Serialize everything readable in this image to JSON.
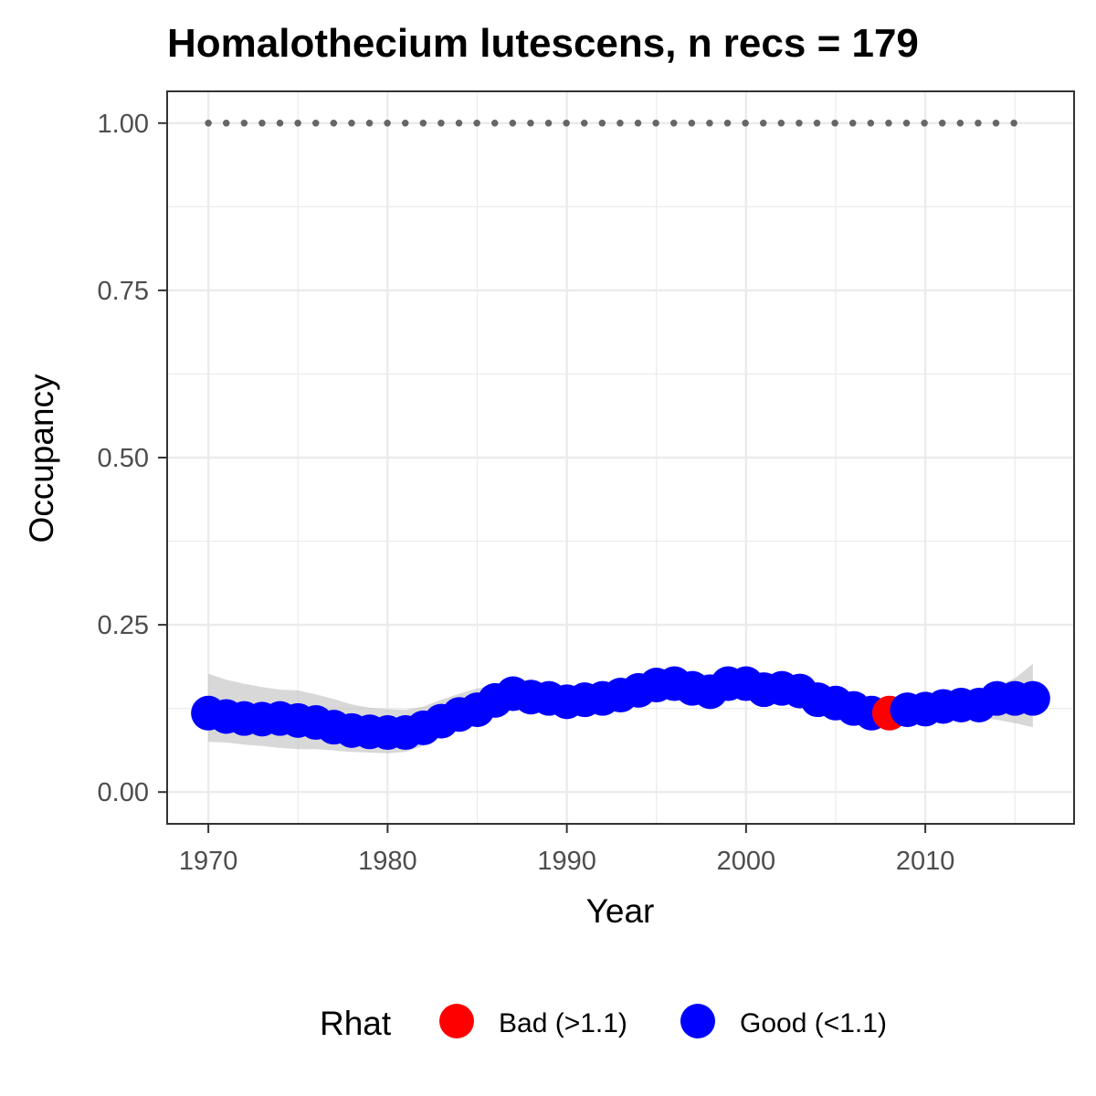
{
  "chart_data": {
    "type": "scatter",
    "title": "Homalothecium lutescens, n recs = 179",
    "xlabel": "Year",
    "ylabel": "Occupancy",
    "xlim": [
      1967.7,
      2018.3
    ],
    "ylim": [
      -0.0475,
      1.0475
    ],
    "x_ticks": [
      1970,
      1980,
      1990,
      2000,
      2010
    ],
    "y_ticks": [
      0.0,
      0.25,
      0.5,
      0.75,
      1.0
    ],
    "y_tick_labels": [
      "0.00",
      "0.25",
      "0.50",
      "0.75",
      "1.00"
    ],
    "grid": true,
    "legend": {
      "title": "Rhat",
      "position": "bottom",
      "entries": [
        {
          "name": "Bad (>1.1)",
          "color": "#ff0000"
        },
        {
          "name": "Good (<1.1)",
          "color": "#0000ff"
        }
      ]
    },
    "years": [
      1970,
      1971,
      1972,
      1973,
      1974,
      1975,
      1976,
      1977,
      1978,
      1979,
      1980,
      1981,
      1982,
      1983,
      1984,
      1985,
      1986,
      1987,
      1988,
      1989,
      1990,
      1991,
      1992,
      1993,
      1994,
      1995,
      1996,
      1997,
      1998,
      1999,
      2000,
      2001,
      2002,
      2003,
      2004,
      2005,
      2006,
      2007,
      2008,
      2009,
      2010,
      2011,
      2012,
      2013,
      2014,
      2015,
      2016
    ],
    "occupancy": [
      0.118,
      0.113,
      0.11,
      0.109,
      0.11,
      0.107,
      0.104,
      0.097,
      0.092,
      0.09,
      0.089,
      0.089,
      0.096,
      0.106,
      0.116,
      0.123,
      0.137,
      0.147,
      0.142,
      0.14,
      0.135,
      0.138,
      0.14,
      0.145,
      0.152,
      0.16,
      0.162,
      0.155,
      0.15,
      0.162,
      0.162,
      0.153,
      0.155,
      0.151,
      0.138,
      0.133,
      0.125,
      0.118,
      0.118,
      0.123,
      0.124,
      0.128,
      0.13,
      0.13,
      0.14,
      0.14,
      0.14
    ],
    "ci_lower": [
      0.075,
      0.074,
      0.071,
      0.069,
      0.066,
      0.064,
      0.064,
      0.062,
      0.06,
      0.059,
      0.058,
      0.06,
      0.069,
      0.082,
      0.094,
      0.107,
      0.118,
      0.125,
      0.125,
      0.124,
      0.121,
      0.121,
      0.124,
      0.128,
      0.135,
      0.139,
      0.142,
      0.14,
      0.135,
      0.139,
      0.141,
      0.139,
      0.136,
      0.13,
      0.121,
      0.114,
      0.108,
      0.104,
      0.102,
      0.105,
      0.108,
      0.111,
      0.112,
      0.111,
      0.108,
      0.103,
      0.097
    ],
    "ci_upper": [
      0.177,
      0.168,
      0.162,
      0.157,
      0.153,
      0.152,
      0.146,
      0.139,
      0.131,
      0.126,
      0.124,
      0.123,
      0.128,
      0.138,
      0.147,
      0.155,
      0.16,
      0.165,
      0.163,
      0.161,
      0.159,
      0.16,
      0.163,
      0.168,
      0.175,
      0.182,
      0.183,
      0.179,
      0.175,
      0.182,
      0.182,
      0.178,
      0.175,
      0.172,
      0.164,
      0.155,
      0.147,
      0.141,
      0.139,
      0.141,
      0.143,
      0.145,
      0.148,
      0.15,
      0.159,
      0.17,
      0.192
    ],
    "rhat_status": [
      "Good",
      "Good",
      "Good",
      "Good",
      "Good",
      "Good",
      "Good",
      "Good",
      "Good",
      "Good",
      "Good",
      "Good",
      "Good",
      "Good",
      "Good",
      "Good",
      "Good",
      "Good",
      "Good",
      "Good",
      "Good",
      "Good",
      "Good",
      "Good",
      "Good",
      "Good",
      "Good",
      "Good",
      "Good",
      "Good",
      "Good",
      "Good",
      "Good",
      "Good",
      "Good",
      "Good",
      "Good",
      "Good",
      "Bad",
      "Good",
      "Good",
      "Good",
      "Good",
      "Good",
      "Good",
      "Good",
      "Good"
    ],
    "reference_line": {
      "y": 1.0,
      "x_start": 1970,
      "x_end": 2015,
      "style": "dotted",
      "color": "#666666"
    },
    "colors": {
      "good": "#0000ff",
      "bad": "#ff0000",
      "ribbon": "#bebebe",
      "grid": "#ebebeb"
    }
  }
}
